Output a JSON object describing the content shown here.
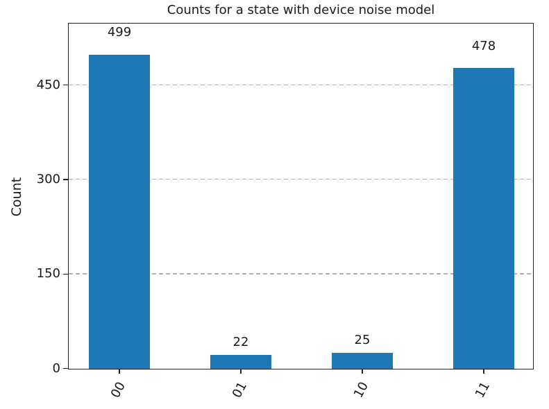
{
  "chart_data": {
    "type": "bar",
    "title": "Counts for a state with device noise model",
    "categories": [
      "00",
      "01",
      "10",
      "11"
    ],
    "values": [
      499,
      22,
      25,
      478
    ],
    "bar_value_labels": [
      "499",
      "22",
      "25",
      "478"
    ],
    "xlabel": "",
    "ylabel": "Count",
    "ylim": [
      0,
      547
    ],
    "yticks": [
      0,
      150,
      300,
      450
    ],
    "ytick_labels": [
      "0",
      "150",
      "300",
      "450"
    ],
    "grid": {
      "axis": "y",
      "style": "dashed",
      "color": "#b0b0b0",
      "gridline_at_zero": false
    },
    "bar_color": "#1f77b4",
    "axis_color": "#222222",
    "text_color": "#1a1a1a",
    "xtick_rotation_deg": 62,
    "legend": null
  }
}
